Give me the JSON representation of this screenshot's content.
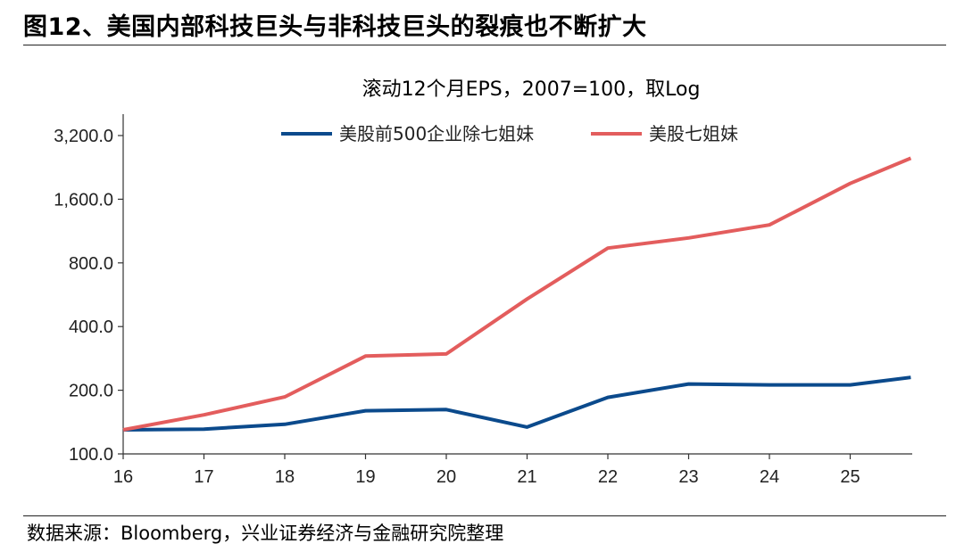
{
  "figure": {
    "title": "图12、美国内部科技巨头与非科技巨头的裂痕也不断扩大",
    "source": "数据来源：Bloomberg，兴业证券经济与金融研究院整理"
  },
  "colors": {
    "series_blue": "#0b4a8c",
    "series_red": "#e35d5d",
    "axis": "#333333"
  },
  "chart_data": {
    "type": "line",
    "title": "滚动12个月EPS，2007=100，取Log",
    "xlabel": "",
    "ylabel": "",
    "y_scale": "log2",
    "ylim": [
      100,
      3200
    ],
    "y_ticks": [
      100,
      200,
      400,
      800,
      1600,
      3200
    ],
    "y_tick_labels": [
      "100.0",
      "200.0",
      "400.0",
      "800.0",
      "1,600.0",
      "3,200.0"
    ],
    "x_tick_labels": [
      "16",
      "17",
      "18",
      "19",
      "20",
      "21",
      "22",
      "23",
      "24",
      "25"
    ],
    "x": [
      2016,
      2017,
      2018,
      2019,
      2020,
      2021,
      2022,
      2023,
      2024,
      2025,
      2025.75
    ],
    "xlim": [
      2016,
      2025.75
    ],
    "legend_position": "top",
    "grid": false,
    "series": [
      {
        "name": "美股前500企业除七姐妹",
        "color": "#0b4a8c",
        "values": [
          130,
          131,
          138,
          160,
          162,
          134,
          185,
          214,
          212,
          212,
          230
        ]
      },
      {
        "name": "美股七姐妹",
        "color": "#e35d5d",
        "values": [
          130,
          153,
          186,
          290,
          297,
          540,
          940,
          1050,
          1210,
          1900,
          2500
        ]
      }
    ]
  }
}
